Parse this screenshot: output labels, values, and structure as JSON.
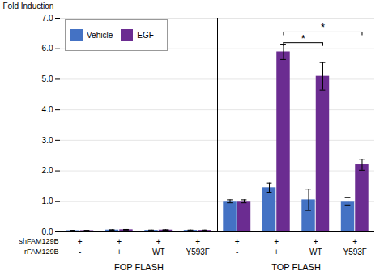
{
  "chart_data": {
    "type": "bar",
    "y_label": "Fold Induction",
    "categories": [
      "-",
      "+",
      "WT",
      "Y593F",
      "-",
      "+",
      "WT",
      "Y593F"
    ],
    "category_label": "rFAM129B",
    "extra_rows": [
      {
        "label": "shFAM129B",
        "labels": [
          "+",
          "+",
          "+",
          "+",
          "+",
          "+",
          "+",
          "+"
        ]
      }
    ],
    "groups": [
      {
        "label": "FOP FLASH",
        "size": 4
      },
      {
        "label": "TOP FLASH",
        "size": 4
      }
    ],
    "series": [
      {
        "name": "Vehicle",
        "color": "#4472C4",
        "values": [
          0.04,
          0.06,
          0.05,
          0.05,
          1.0,
          1.45,
          1.05,
          1.0
        ],
        "errors": [
          0.01,
          0.01,
          0.01,
          0.01,
          0.05,
          0.15,
          0.35,
          0.12
        ]
      },
      {
        "name": "EGF",
        "color": "#6B2C91",
        "values": [
          0.04,
          0.07,
          0.06,
          0.05,
          1.0,
          5.9,
          5.1,
          2.2
        ],
        "errors": [
          0.01,
          0.01,
          0.01,
          0.01,
          0.05,
          0.25,
          0.45,
          0.18
        ]
      }
    ],
    "ylim": [
      0,
      7
    ],
    "yticks": [
      0,
      1,
      2,
      3,
      4,
      5,
      6,
      7
    ],
    "grid": true,
    "legend": "upper left",
    "brackets": [
      {
        "series": "EGF",
        "from": 5,
        "to": 7,
        "y": 6.55,
        "label": "*"
      },
      {
        "series": "EGF",
        "from": 5,
        "to": 6,
        "y": 6.2,
        "label": "*"
      }
    ]
  }
}
